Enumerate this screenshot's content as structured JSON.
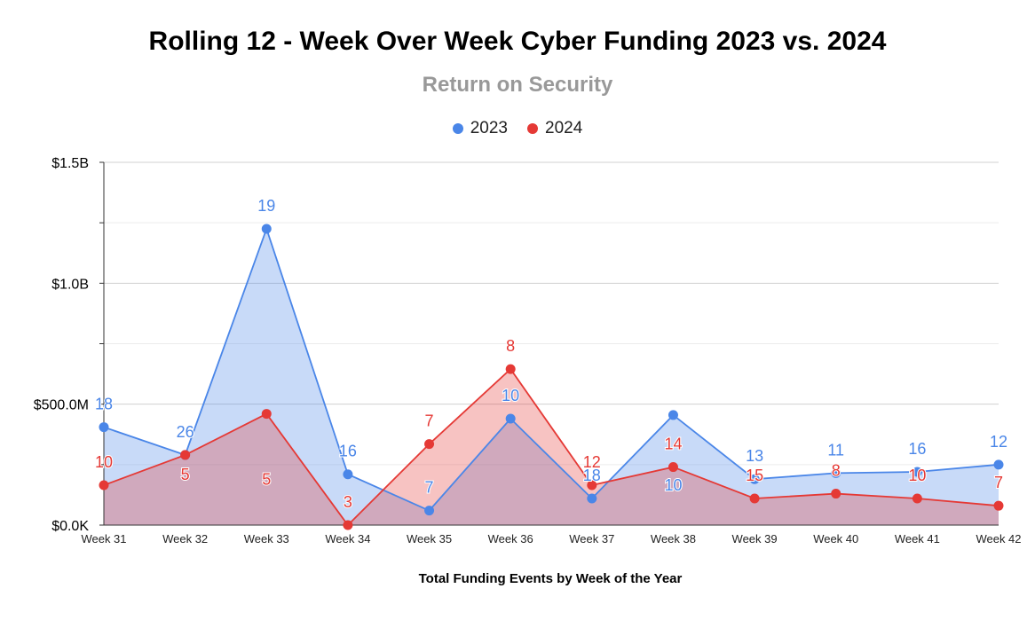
{
  "chart_data": {
    "type": "area",
    "title": "Rolling 12 - Week Over Week Cyber Funding 2023 vs. 2024",
    "subtitle": "Return on Security",
    "xlabel": "Total Funding Events by Week of the Year",
    "ylabel": "",
    "ylim": [
      0,
      1500000000
    ],
    "yticks": [
      {
        "value": 0,
        "label": "$0.0K"
      },
      {
        "value": 500000000,
        "label": "$500.0M"
      },
      {
        "value": 1000000000,
        "label": "$1.0B"
      },
      {
        "value": 1500000000,
        "label": "$1.5B"
      }
    ],
    "grid": true,
    "legend": "top-center",
    "categories": [
      "Week 31",
      "Week 32",
      "Week 33",
      "Week 34",
      "Week 35",
      "Week 36",
      "Week 37",
      "Week 38",
      "Week 39",
      "Week 40",
      "Week 41",
      "Week 42"
    ],
    "series": [
      {
        "name": "2023",
        "color": "#4a86e8",
        "fill": "#c9daf8",
        "values": [
          405000000,
          290000000,
          1225000000,
          210000000,
          60000000,
          440000000,
          110000000,
          455000000,
          190000000,
          215000000,
          220000000,
          250000000
        ],
        "labels": [
          "18",
          "26",
          "19",
          "16",
          "7",
          "10",
          "18",
          "10",
          "13",
          "11",
          "16",
          "12"
        ]
      },
      {
        "name": "2024",
        "color": "#e53935",
        "fill": "#f4b4b0",
        "values": [
          165000000,
          290000000,
          460000000,
          0,
          335000000,
          645000000,
          165000000,
          240000000,
          110000000,
          130000000,
          110000000,
          80000000
        ],
        "labels": [
          "10",
          "5",
          "5",
          "3",
          "7",
          "8",
          "12",
          "14",
          "15",
          "8",
          "10",
          "7"
        ]
      }
    ]
  }
}
